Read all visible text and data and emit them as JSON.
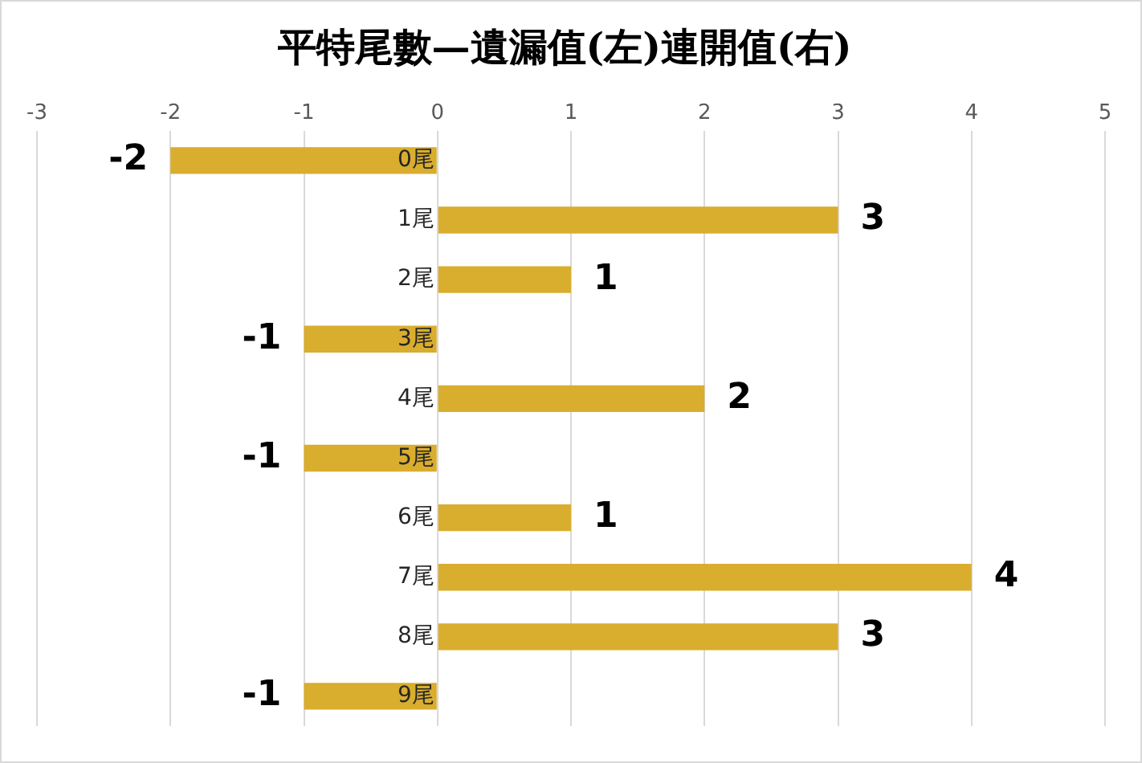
{
  "chart_data": {
    "type": "bar",
    "orientation": "horizontal",
    "title": "平特尾數—遺漏值(左)連開值(右)",
    "categories": [
      "0尾",
      "1尾",
      "2尾",
      "3尾",
      "4尾",
      "5尾",
      "6尾",
      "7尾",
      "8尾",
      "9尾"
    ],
    "values": [
      -2,
      3,
      1,
      -1,
      2,
      -1,
      1,
      4,
      3,
      -1
    ],
    "color": "#d9ad2e",
    "xlim": [
      -3,
      5
    ],
    "xticks": [
      -3,
      -2,
      -1,
      0,
      1,
      2,
      3,
      4,
      5
    ],
    "grid": "x",
    "data_labels": true,
    "legend": false
  }
}
